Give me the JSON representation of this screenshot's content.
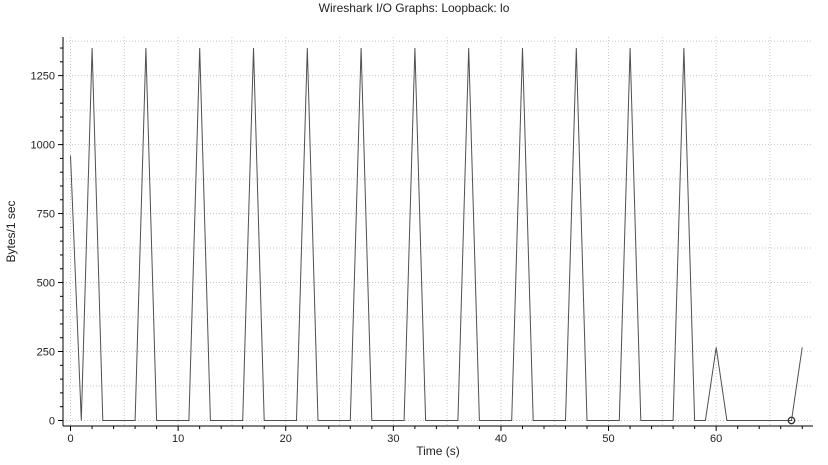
{
  "window": {
    "title": "Wireshark I/O Graphs: Loopback: lo"
  },
  "chart_data": {
    "type": "line",
    "title": "Wireshark I/O Graphs: Loopback: lo",
    "xlabel": "Time (s)",
    "ylabel": "Bytes/1 sec",
    "xlim": [
      -0.7,
      69
    ],
    "ylim": [
      -20,
      1390
    ],
    "xticks": [
      0,
      10,
      20,
      30,
      40,
      50,
      60
    ],
    "yticks": [
      0,
      250,
      500,
      750,
      1000,
      1250
    ],
    "grid": true,
    "colors": {
      "line": "#505050",
      "grid": "#c8c8c8",
      "axis": "#000000",
      "marker": "#333333"
    },
    "series": [
      {
        "x": [
          0,
          1,
          2,
          3,
          4,
          5,
          6,
          7,
          8,
          9,
          10,
          11,
          12,
          13,
          14,
          15,
          16,
          17,
          18,
          19,
          20,
          21,
          22,
          23,
          24,
          25,
          26,
          27,
          28,
          29,
          30,
          31,
          32,
          33,
          34,
          35,
          36,
          37,
          38,
          39,
          40,
          41,
          42,
          43,
          44,
          45,
          46,
          47,
          48,
          49,
          50,
          51,
          52,
          53,
          54,
          55,
          56,
          57,
          58,
          59,
          60,
          61,
          62,
          63,
          64,
          65,
          66,
          67,
          68
        ],
        "values": [
          960,
          0,
          1350,
          0,
          0,
          0,
          0,
          1350,
          0,
          0,
          0,
          0,
          1350,
          0,
          0,
          0,
          0,
          1350,
          0,
          0,
          0,
          0,
          1350,
          0,
          0,
          0,
          0,
          1350,
          0,
          0,
          0,
          0,
          1350,
          0,
          0,
          0,
          0,
          1350,
          0,
          0,
          0,
          0,
          1350,
          0,
          0,
          0,
          0,
          1350,
          0,
          0,
          0,
          0,
          1350,
          0,
          0,
          0,
          0,
          1350,
          0,
          0,
          265,
          0,
          0,
          0,
          0,
          0,
          0,
          0,
          265
        ]
      }
    ],
    "selected_point": {
      "x": 67,
      "y": 0
    }
  }
}
